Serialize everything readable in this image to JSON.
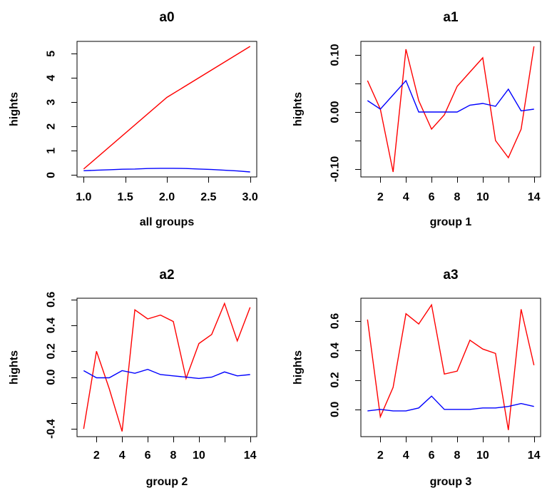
{
  "figure": {
    "background": "#ffffff",
    "text_color": "#000000",
    "red": "#ff0000",
    "blue": "#0000ff"
  },
  "chart_data": [
    {
      "panel": "a0",
      "type": "line",
      "title": "a0",
      "xlabel": "all groups",
      "ylabel": "hights",
      "grid": false,
      "legend": null,
      "xlim": [
        0.92,
        3.08
      ],
      "ylim": [
        -0.077,
        5.507
      ],
      "xticks": {
        "values": [
          1.0,
          1.5,
          2.0,
          2.5,
          3.0
        ],
        "labels": [
          "1.0",
          "1.5",
          "2.0",
          "2.5",
          "3.0"
        ]
      },
      "yticks": {
        "values": [
          0,
          1,
          2,
          3,
          4,
          5
        ],
        "labels": [
          "0",
          "1",
          "2",
          "3",
          "4",
          "5"
        ]
      },
      "series": [
        {
          "name": "red-line",
          "color": "#ff0000",
          "x": [
            1,
            2,
            3
          ],
          "y": [
            0.25,
            3.2,
            5.3
          ]
        },
        {
          "name": "blue-line",
          "color": "#0000ff",
          "x": [
            1,
            1.154,
            1.308,
            1.462,
            1.615,
            1.769,
            1.923,
            2.077,
            2.231,
            2.385,
            2.538,
            2.692,
            2.846,
            3
          ],
          "y": [
            0.18,
            0.2,
            0.22,
            0.24,
            0.25,
            0.27,
            0.28,
            0.28,
            0.27,
            0.25,
            0.23,
            0.2,
            0.17,
            0.13
          ]
        }
      ]
    },
    {
      "panel": "a1",
      "type": "line",
      "title": "a1",
      "xlabel": "group 1",
      "ylabel": "hights",
      "grid": false,
      "legend": null,
      "xlim": [
        0.48,
        14.52
      ],
      "ylim": [
        -0.1138,
        0.1238
      ],
      "xticks": {
        "values": [
          2,
          4,
          6,
          8,
          10,
          12,
          14
        ],
        "labels": [
          "2",
          "4",
          "6",
          "8",
          "10",
          "",
          "14"
        ]
      },
      "yticks": {
        "values": [
          -0.1,
          -0.05,
          0.0,
          0.05,
          0.1
        ],
        "labels": [
          "-0.10",
          "",
          "0.00",
          "",
          "0.10"
        ]
      },
      "series": [
        {
          "name": "red-line",
          "color": "#ff0000",
          "x": [
            1,
            2,
            3,
            4,
            5,
            6,
            7,
            8,
            9,
            10,
            11,
            12,
            13,
            14
          ],
          "y": [
            0.055,
            0.005,
            -0.105,
            0.11,
            0.02,
            -0.03,
            -0.005,
            0.045,
            0.07,
            0.095,
            -0.05,
            -0.08,
            -0.03,
            0.115
          ]
        },
        {
          "name": "blue-line",
          "color": "#0000ff",
          "x": [
            1,
            2,
            3,
            4,
            5,
            6,
            7,
            8,
            9,
            10,
            11,
            12,
            13,
            14
          ],
          "y": [
            0.02,
            0.005,
            0.03,
            0.055,
            0.0,
            0.0,
            0.0,
            0.0,
            0.012,
            0.015,
            0.01,
            0.04,
            0.002,
            0.005
          ]
        }
      ]
    },
    {
      "panel": "a2",
      "type": "line",
      "title": "a2",
      "xlabel": "group 2",
      "ylabel": "hights",
      "grid": false,
      "legend": null,
      "xlim": [
        0.48,
        14.52
      ],
      "ylim": [
        -0.46,
        0.61
      ],
      "xticks": {
        "values": [
          2,
          4,
          6,
          8,
          10,
          12,
          14
        ],
        "labels": [
          "2",
          "4",
          "6",
          "8",
          "10",
          "",
          "14"
        ]
      },
      "yticks": {
        "values": [
          -0.4,
          -0.2,
          0.0,
          0.2,
          0.4,
          0.6
        ],
        "labels": [
          "-0.4",
          "",
          "0.0",
          "0.2",
          "0.4",
          "0.6"
        ]
      },
      "series": [
        {
          "name": "red-line",
          "color": "#ff0000",
          "x": [
            1,
            2,
            3,
            4,
            5,
            6,
            7,
            8,
            9,
            10,
            11,
            12,
            13,
            14
          ],
          "y": [
            -0.4,
            0.2,
            -0.09,
            -0.42,
            0.52,
            0.45,
            0.48,
            0.43,
            -0.01,
            0.26,
            0.33,
            0.57,
            0.28,
            0.54
          ]
        },
        {
          "name": "blue-line",
          "color": "#0000ff",
          "x": [
            1,
            2,
            3,
            4,
            5,
            6,
            7,
            8,
            9,
            10,
            11,
            12,
            13,
            14
          ],
          "y": [
            0.05,
            -0.005,
            -0.005,
            0.05,
            0.03,
            0.06,
            0.02,
            0.01,
            0.0,
            -0.01,
            0.0,
            0.04,
            0.01,
            0.02
          ]
        }
      ]
    },
    {
      "panel": "a3",
      "type": "line",
      "title": "a3",
      "xlabel": "group 3",
      "ylabel": "hights",
      "grid": false,
      "legend": null,
      "xlim": [
        0.48,
        14.52
      ],
      "ylim": [
        -0.185,
        0.755
      ],
      "xticks": {
        "values": [
          2,
          4,
          6,
          8,
          10,
          12,
          14
        ],
        "labels": [
          "2",
          "4",
          "6",
          "8",
          "10",
          "",
          "14"
        ]
      },
      "yticks": {
        "values": [
          0.0,
          0.2,
          0.4,
          0.6
        ],
        "labels": [
          "0.0",
          "0.2",
          "0.4",
          "0.6"
        ]
      },
      "series": [
        {
          "name": "red-line",
          "color": "#ff0000",
          "x": [
            1,
            2,
            3,
            4,
            5,
            6,
            7,
            8,
            9,
            10,
            11,
            12,
            13,
            14
          ],
          "y": [
            0.61,
            -0.05,
            0.15,
            0.65,
            0.58,
            0.71,
            0.24,
            0.26,
            0.47,
            0.41,
            0.38,
            -0.14,
            0.68,
            0.3
          ]
        },
        {
          "name": "blue-line",
          "color": "#0000ff",
          "x": [
            1,
            2,
            3,
            4,
            5,
            6,
            7,
            8,
            9,
            10,
            11,
            12,
            13,
            14
          ],
          "y": [
            -0.01,
            0.0,
            -0.01,
            -0.01,
            0.01,
            0.09,
            0.0,
            0.0,
            0.0,
            0.01,
            0.01,
            0.02,
            0.04,
            0.02
          ]
        }
      ]
    }
  ]
}
